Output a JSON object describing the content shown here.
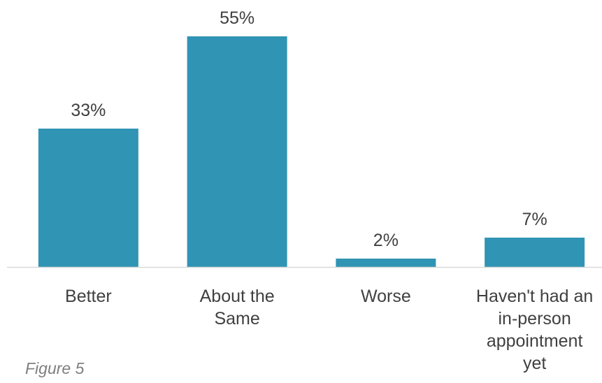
{
  "caption": "Figure 5",
  "chart_data": {
    "type": "bar",
    "categories": [
      [
        "Better"
      ],
      [
        "About the",
        "Same"
      ],
      [
        "Worse"
      ],
      [
        "Haven't had an",
        "in-person",
        "appointment",
        "yet"
      ]
    ],
    "values": [
      33,
      55,
      2,
      7
    ],
    "data_labels": [
      "33%",
      "55%",
      "2%",
      "7%"
    ],
    "value_unit": "%",
    "title": "",
    "xlabel": "",
    "ylabel": "",
    "ylim": [
      0,
      55
    ],
    "grid": false,
    "legend": "none",
    "bar_color": "#3094b4",
    "axis_color": "#d9d9d9"
  }
}
